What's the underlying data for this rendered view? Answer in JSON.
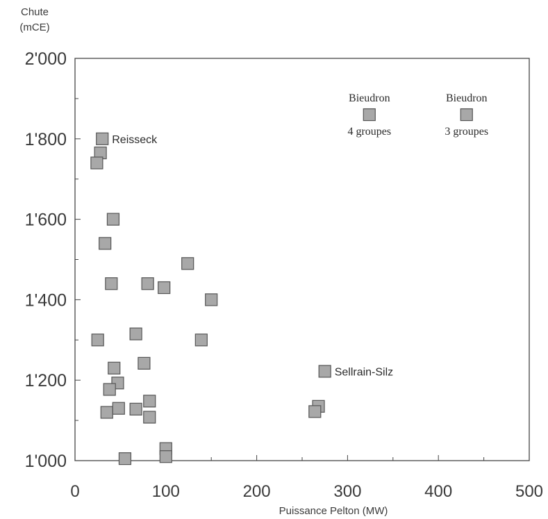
{
  "chart_data": {
    "type": "scatter",
    "title": "",
    "xlabel": "Puissance Pelton (MW)",
    "ylabel_line1": "Chute",
    "ylabel_line2": "(mCE)",
    "xlim": [
      0,
      500
    ],
    "ylim": [
      1000,
      2000
    ],
    "x_ticks": [
      0,
      100,
      200,
      300,
      400,
      500
    ],
    "x_tick_labels": [
      "0",
      "100",
      "200",
      "300",
      "400",
      "500"
    ],
    "y_ticks": [
      1000,
      1200,
      1400,
      1600,
      1800,
      2000
    ],
    "y_tick_labels": [
      "1'000",
      "1'200",
      "1'400",
      "1'600",
      "1'800",
      "2'000"
    ],
    "grid": false,
    "marker_color": "#a8a8a8",
    "points": [
      {
        "x": 30,
        "y": 1800
      },
      {
        "x": 28,
        "y": 1765
      },
      {
        "x": 24,
        "y": 1740
      },
      {
        "x": 42,
        "y": 1600
      },
      {
        "x": 33,
        "y": 1540
      },
      {
        "x": 40,
        "y": 1440
      },
      {
        "x": 80,
        "y": 1440
      },
      {
        "x": 98,
        "y": 1430
      },
      {
        "x": 124,
        "y": 1490
      },
      {
        "x": 150,
        "y": 1400
      },
      {
        "x": 25,
        "y": 1300
      },
      {
        "x": 67,
        "y": 1315
      },
      {
        "x": 139,
        "y": 1300
      },
      {
        "x": 43,
        "y": 1230
      },
      {
        "x": 76,
        "y": 1242
      },
      {
        "x": 47,
        "y": 1193
      },
      {
        "x": 38,
        "y": 1177
      },
      {
        "x": 35,
        "y": 1120
      },
      {
        "x": 48,
        "y": 1130
      },
      {
        "x": 67,
        "y": 1128
      },
      {
        "x": 82,
        "y": 1148
      },
      {
        "x": 82,
        "y": 1108
      },
      {
        "x": 55,
        "y": 1005
      },
      {
        "x": 100,
        "y": 1030
      },
      {
        "x": 100,
        "y": 1010
      },
      {
        "x": 268,
        "y": 1135
      },
      {
        "x": 264,
        "y": 1122
      },
      {
        "x": 275,
        "y": 1222
      },
      {
        "x": 324,
        "y": 1860
      },
      {
        "x": 431,
        "y": 1860
      }
    ],
    "annotations": [
      {
        "x": 30,
        "y": 1800,
        "lines": [
          "Reisseck"
        ],
        "style": "sans",
        "position": "right"
      },
      {
        "x": 275,
        "y": 1222,
        "lines": [
          "Sellrain-Silz"
        ],
        "style": "sans",
        "position": "right"
      },
      {
        "x": 324,
        "y": 1860,
        "lines": [
          "Bieudron",
          "4 groupes"
        ],
        "style": "serif",
        "position": "stacked"
      },
      {
        "x": 431,
        "y": 1860,
        "lines": [
          "Bieudron",
          "3 groupes"
        ],
        "style": "serif",
        "position": "stacked"
      }
    ]
  }
}
